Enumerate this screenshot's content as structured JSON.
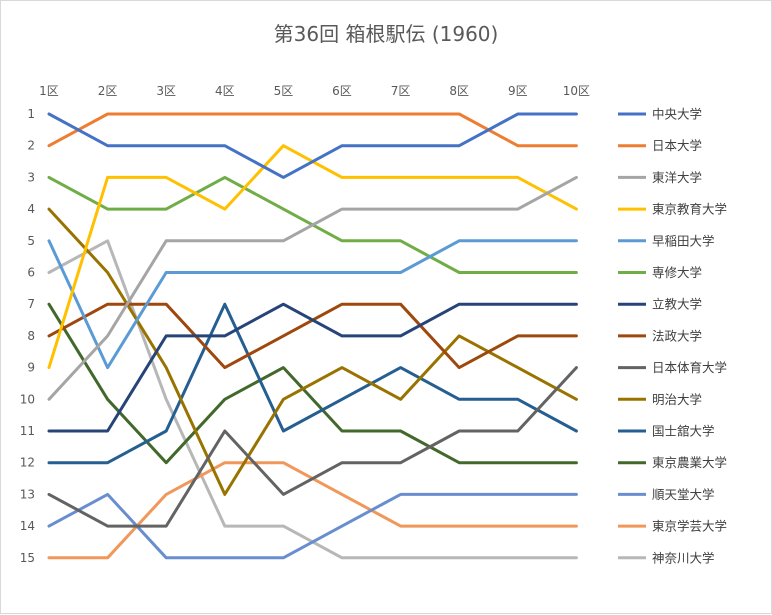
{
  "chart_data": {
    "type": "line",
    "title": "第36回 箱根駅伝 (1960)",
    "categories": [
      "1区",
      "2区",
      "3区",
      "4区",
      "5区",
      "6区",
      "7区",
      "8区",
      "9区",
      "10区"
    ],
    "y_tick_labels": [
      "1",
      "2",
      "3",
      "4",
      "5",
      "6",
      "7",
      "8",
      "9",
      "10",
      "11",
      "12",
      "13",
      "14",
      "15"
    ],
    "ylim": [
      1,
      15
    ],
    "y_reversed": true,
    "grid": false,
    "legend_position": "right",
    "series": [
      {
        "name": "中央大学",
        "color": "#4472C4",
        "values": [
          1,
          2,
          2,
          2,
          3,
          2,
          2,
          2,
          1,
          1
        ]
      },
      {
        "name": "日本大学",
        "color": "#ED7D31",
        "values": [
          2,
          1,
          1,
          1,
          1,
          1,
          1,
          1,
          2,
          2
        ]
      },
      {
        "name": "東洋大学",
        "color": "#A5A5A5",
        "values": [
          10,
          8,
          5,
          5,
          5,
          4,
          4,
          4,
          4,
          3
        ]
      },
      {
        "name": "東京教育大学",
        "color": "#FFC000",
        "values": [
          9,
          3,
          3,
          4,
          2,
          3,
          3,
          3,
          3,
          4
        ]
      },
      {
        "name": "早稲田大学",
        "color": "#5B9BD5",
        "values": [
          5,
          9,
          6,
          6,
          6,
          6,
          6,
          5,
          5,
          5
        ]
      },
      {
        "name": "専修大学",
        "color": "#70AD47",
        "values": [
          3,
          4,
          4,
          3,
          4,
          5,
          5,
          6,
          6,
          6
        ]
      },
      {
        "name": "立教大学",
        "color": "#264478",
        "values": [
          11,
          11,
          8,
          8,
          7,
          8,
          8,
          7,
          7,
          7
        ]
      },
      {
        "name": "法政大学",
        "color": "#9E480E",
        "values": [
          8,
          7,
          7,
          9,
          8,
          7,
          7,
          9,
          8,
          8
        ]
      },
      {
        "name": "日本体育大学",
        "color": "#636363",
        "values": [
          13,
          14,
          14,
          11,
          13,
          12,
          12,
          11,
          11,
          9
        ]
      },
      {
        "name": "明治大学",
        "color": "#997300",
        "values": [
          4,
          6,
          9,
          13,
          10,
          9,
          10,
          8,
          9,
          10
        ]
      },
      {
        "name": "国士舘大学",
        "color": "#255E91",
        "values": [
          12,
          12,
          11,
          7,
          11,
          10,
          9,
          10,
          10,
          11
        ]
      },
      {
        "name": "東京農業大学",
        "color": "#43682B",
        "values": [
          7,
          10,
          12,
          10,
          9,
          11,
          11,
          12,
          12,
          12
        ]
      },
      {
        "name": "順天堂大学",
        "color": "#698ED0",
        "values": [
          14,
          13,
          15,
          15,
          15,
          14,
          13,
          13,
          13,
          13
        ]
      },
      {
        "name": "東京学芸大学",
        "color": "#F1975A",
        "values": [
          15,
          15,
          13,
          12,
          12,
          13,
          14,
          14,
          14,
          14
        ]
      },
      {
        "name": "神奈川大学",
        "color": "#B7B7B7",
        "values": [
          6,
          5,
          10,
          14,
          14,
          15,
          15,
          15,
          15,
          15
        ]
      }
    ]
  }
}
